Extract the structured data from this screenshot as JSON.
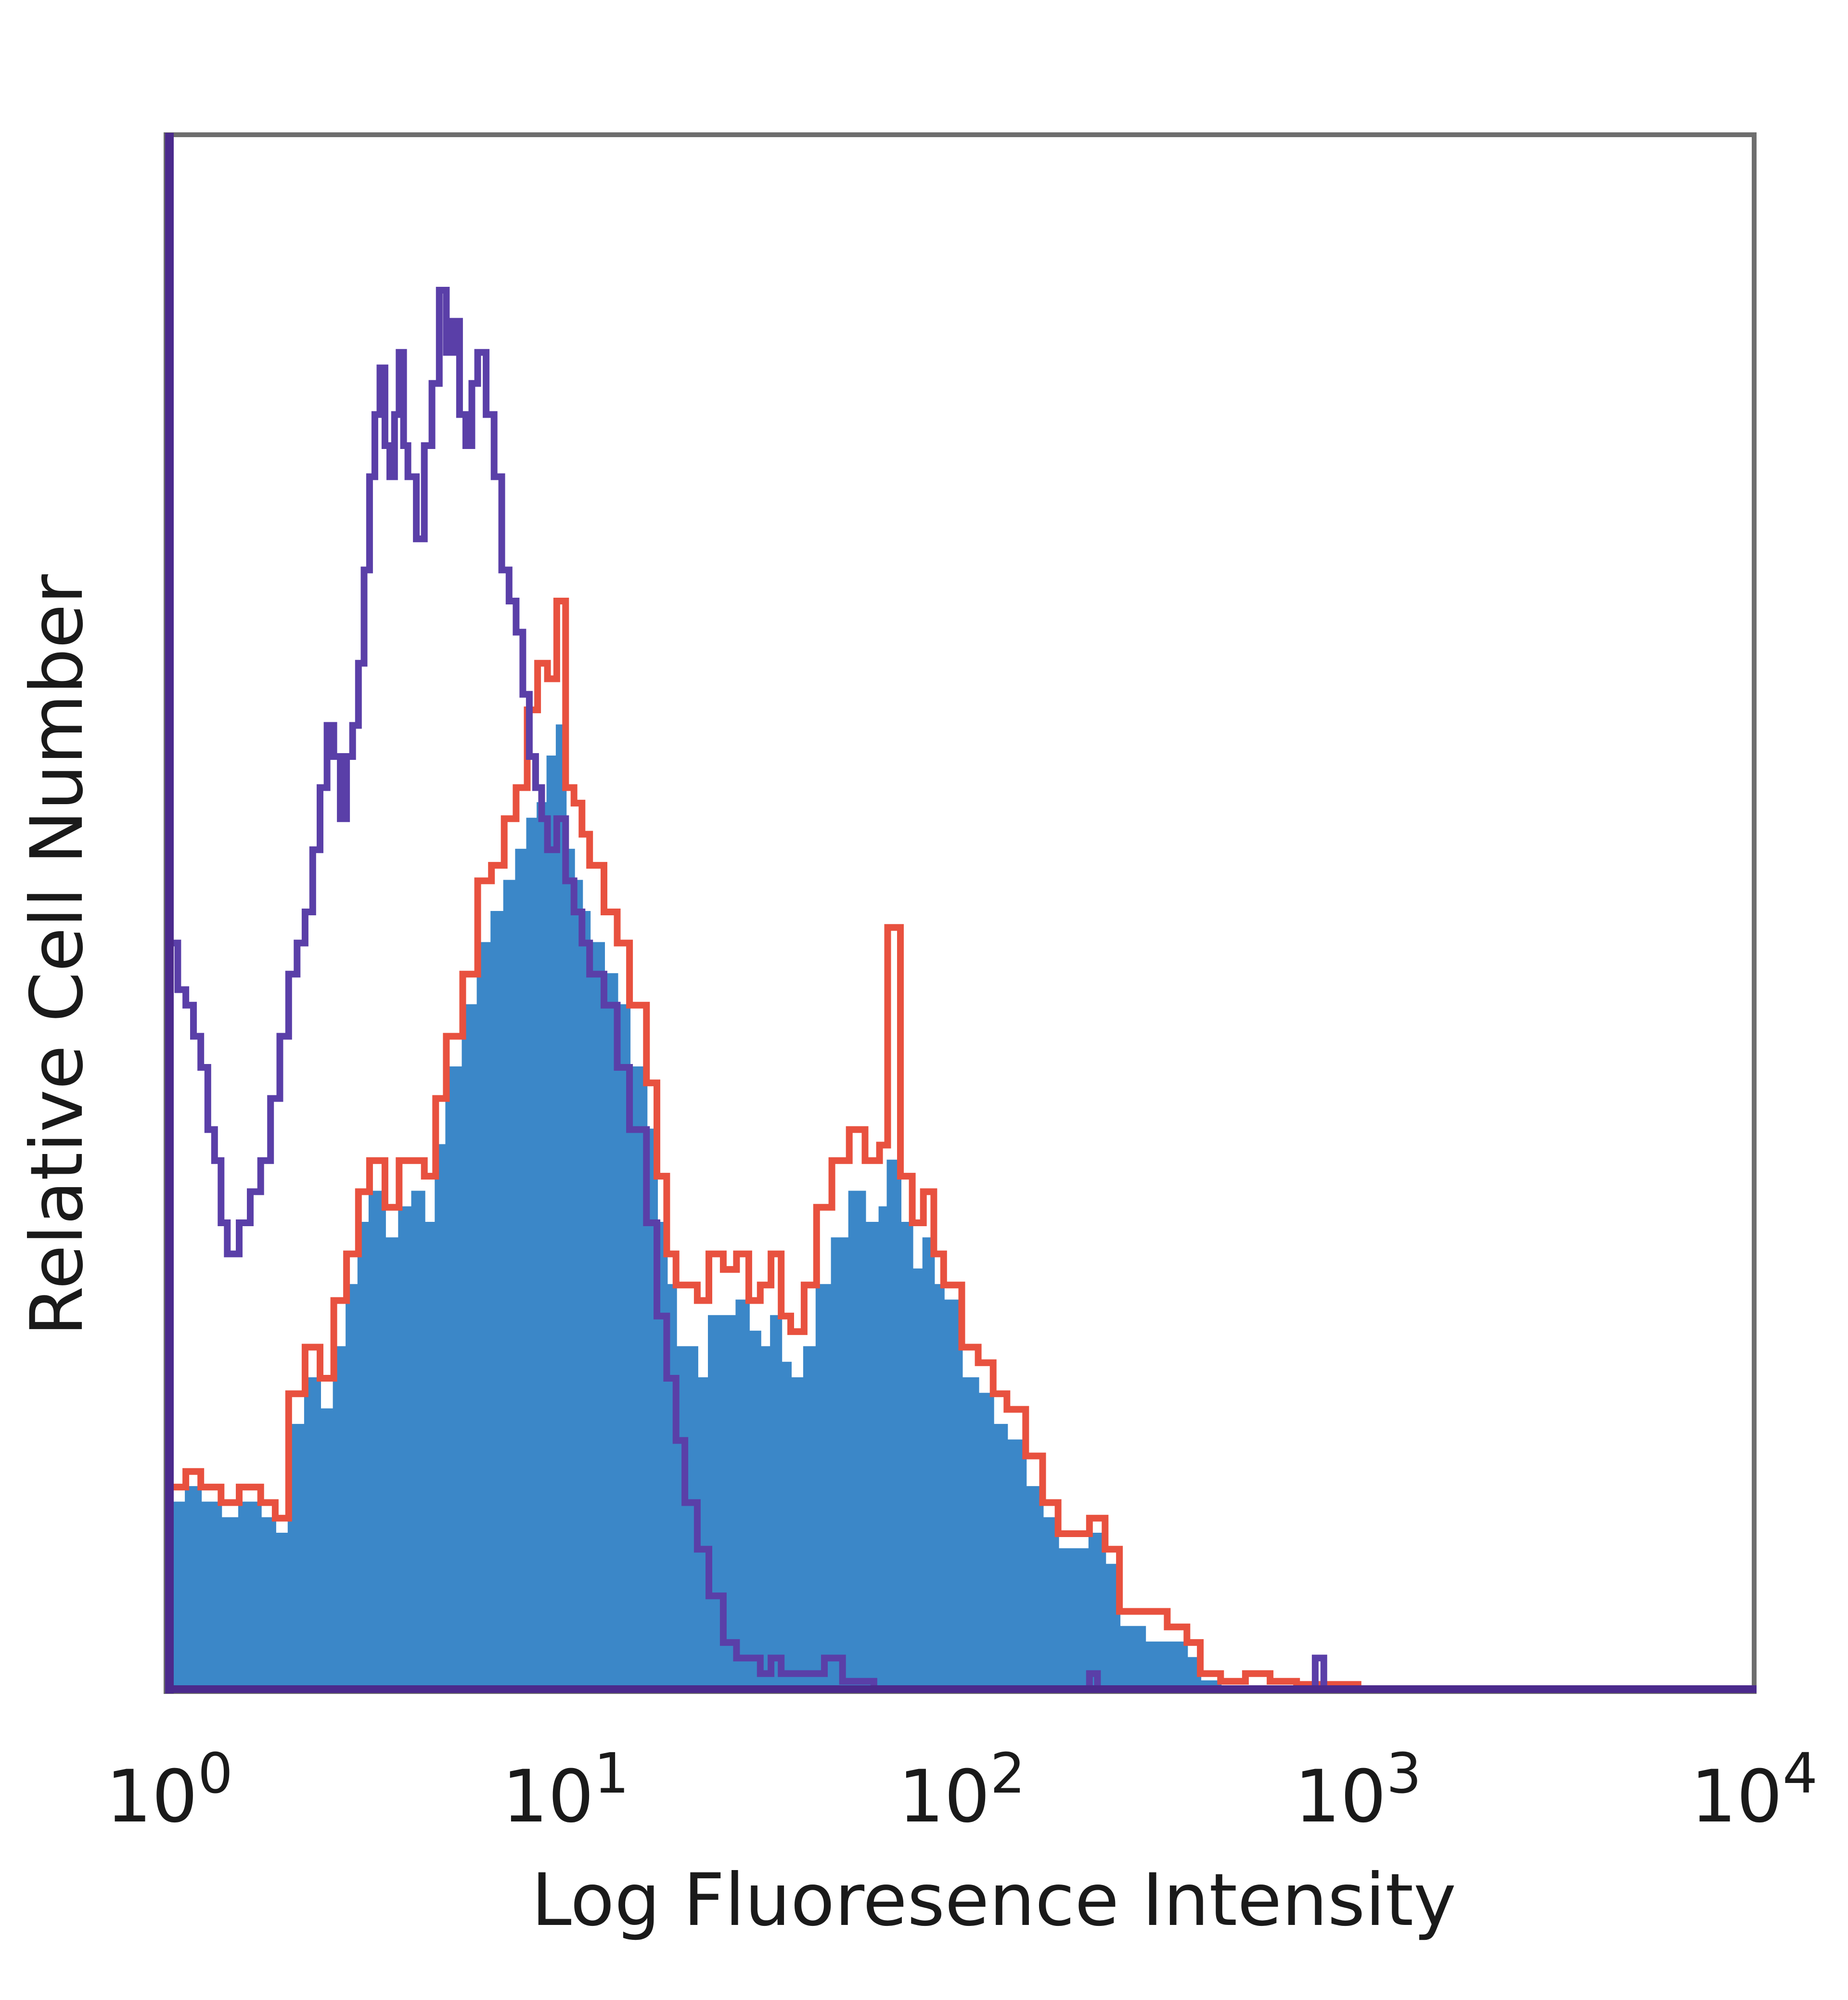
{
  "chart_data": {
    "type": "area",
    "title": "",
    "xlabel": "Log Fluoresence Intensity",
    "ylabel": "Relative Cell Number",
    "x_scale": "log",
    "xlim": [
      1,
      10000
    ],
    "ylim": [
      0,
      100
    ],
    "grid": false,
    "legend": "none",
    "x_ticks": [
      {
        "value": 1,
        "base": "10",
        "exp": "0"
      },
      {
        "value": 10,
        "base": "10",
        "exp": "1"
      },
      {
        "value": 100,
        "base": "10",
        "exp": "2"
      },
      {
        "value": 1000,
        "base": "10",
        "exp": "3"
      },
      {
        "value": 10000,
        "base": "10",
        "exp": "4"
      }
    ],
    "series": [
      {
        "style": "filled",
        "color": "#3b87c8",
        "points": [
          [
            1.0,
            12
          ],
          [
            1.1,
            13
          ],
          [
            1.2,
            12
          ],
          [
            1.35,
            11
          ],
          [
            1.5,
            12
          ],
          [
            1.7,
            11
          ],
          [
            1.85,
            10
          ],
          [
            2.0,
            17
          ],
          [
            2.2,
            20
          ],
          [
            2.4,
            18
          ],
          [
            2.6,
            22
          ],
          [
            2.8,
            26
          ],
          [
            3.0,
            30
          ],
          [
            3.2,
            32
          ],
          [
            3.5,
            29
          ],
          [
            3.8,
            31
          ],
          [
            4.1,
            32
          ],
          [
            4.4,
            30
          ],
          [
            4.7,
            35
          ],
          [
            5.0,
            40
          ],
          [
            5.5,
            44
          ],
          [
            6.0,
            48
          ],
          [
            6.5,
            50
          ],
          [
            7.0,
            52
          ],
          [
            7.5,
            54
          ],
          [
            8.0,
            56
          ],
          [
            8.5,
            57
          ],
          [
            9.0,
            60
          ],
          [
            9.5,
            62
          ],
          [
            10.0,
            54
          ],
          [
            10.5,
            52
          ],
          [
            11.0,
            50
          ],
          [
            11.5,
            48
          ],
          [
            12.5,
            46
          ],
          [
            13.5,
            44
          ],
          [
            14.5,
            40
          ],
          [
            16.0,
            36
          ],
          [
            17.0,
            30
          ],
          [
            18.0,
            26
          ],
          [
            19.0,
            22
          ],
          [
            20.0,
            22
          ],
          [
            21.5,
            20
          ],
          [
            23.0,
            24
          ],
          [
            25.0,
            24
          ],
          [
            27.0,
            25
          ],
          [
            29.0,
            23
          ],
          [
            31.0,
            22
          ],
          [
            33.0,
            24
          ],
          [
            35.0,
            21
          ],
          [
            37.0,
            20
          ],
          [
            40.0,
            22
          ],
          [
            43.0,
            26
          ],
          [
            47.0,
            29
          ],
          [
            52.0,
            32
          ],
          [
            57.0,
            30
          ],
          [
            62.0,
            31
          ],
          [
            65.0,
            34
          ],
          [
            70.0,
            30
          ],
          [
            75.0,
            27
          ],
          [
            80.0,
            29
          ],
          [
            85.0,
            26
          ],
          [
            90.0,
            25
          ],
          [
            100.0,
            20
          ],
          [
            110.0,
            19
          ],
          [
            120.0,
            17
          ],
          [
            130.0,
            16
          ],
          [
            145.0,
            13
          ],
          [
            160.0,
            11
          ],
          [
            175.0,
            9
          ],
          [
            190.0,
            9
          ],
          [
            210.0,
            10
          ],
          [
            230.0,
            8
          ],
          [
            250.0,
            4
          ],
          [
            290.0,
            3
          ],
          [
            330.0,
            3
          ],
          [
            370.0,
            2
          ],
          [
            400.0,
            0.5
          ],
          [
            450.0,
            0
          ],
          [
            1000.0,
            0
          ]
        ]
      },
      {
        "style": "line",
        "color": "#e8513f",
        "points": [
          [
            1.0,
            13
          ],
          [
            1.1,
            14
          ],
          [
            1.2,
            13
          ],
          [
            1.35,
            12
          ],
          [
            1.5,
            13
          ],
          [
            1.7,
            12
          ],
          [
            1.85,
            11
          ],
          [
            2.0,
            19
          ],
          [
            2.2,
            22
          ],
          [
            2.4,
            20
          ],
          [
            2.6,
            25
          ],
          [
            2.8,
            28
          ],
          [
            3.0,
            32
          ],
          [
            3.2,
            34
          ],
          [
            3.5,
            31
          ],
          [
            3.8,
            34
          ],
          [
            4.1,
            34
          ],
          [
            4.4,
            33
          ],
          [
            4.7,
            38
          ],
          [
            5.0,
            42
          ],
          [
            5.5,
            46
          ],
          [
            6.0,
            52
          ],
          [
            6.5,
            53
          ],
          [
            7.0,
            56
          ],
          [
            7.5,
            58
          ],
          [
            8.0,
            63
          ],
          [
            8.5,
            66
          ],
          [
            9.0,
            65
          ],
          [
            9.5,
            70
          ],
          [
            10.0,
            58
          ],
          [
            10.5,
            57
          ],
          [
            11.0,
            55
          ],
          [
            11.5,
            53
          ],
          [
            12.5,
            50
          ],
          [
            13.5,
            48
          ],
          [
            14.5,
            44
          ],
          [
            16.0,
            39
          ],
          [
            17.0,
            33
          ],
          [
            18.0,
            28
          ],
          [
            19.0,
            26
          ],
          [
            20.0,
            26
          ],
          [
            21.5,
            25
          ],
          [
            23.0,
            28
          ],
          [
            25.0,
            27
          ],
          [
            27.0,
            28
          ],
          [
            29.0,
            25
          ],
          [
            31.0,
            26
          ],
          [
            33.0,
            28
          ],
          [
            35.0,
            24
          ],
          [
            37.0,
            23
          ],
          [
            40.0,
            26
          ],
          [
            43.0,
            31
          ],
          [
            47.0,
            34
          ],
          [
            52.0,
            36
          ],
          [
            57.0,
            34
          ],
          [
            62.0,
            35
          ],
          [
            65.0,
            49
          ],
          [
            70.0,
            33
          ],
          [
            75.0,
            30
          ],
          [
            80.0,
            32
          ],
          [
            85.0,
            28
          ],
          [
            90.0,
            26
          ],
          [
            100.0,
            22
          ],
          [
            110.0,
            21
          ],
          [
            120.0,
            19
          ],
          [
            130.0,
            18
          ],
          [
            145.0,
            15
          ],
          [
            160.0,
            12
          ],
          [
            175.0,
            10
          ],
          [
            190.0,
            10
          ],
          [
            210.0,
            11
          ],
          [
            230.0,
            9
          ],
          [
            250.0,
            5
          ],
          [
            290.0,
            5
          ],
          [
            330.0,
            4
          ],
          [
            370.0,
            3
          ],
          [
            400.0,
            1
          ],
          [
            450.0,
            0.5
          ],
          [
            520.0,
            1
          ],
          [
            600.0,
            0.5
          ],
          [
            700.0,
            0.3
          ],
          [
            1000.0,
            0
          ]
        ]
      },
      {
        "style": "line",
        "color": "#5a3fa8",
        "points": [
          [
            1.0,
            48
          ],
          [
            1.05,
            45
          ],
          [
            1.1,
            44
          ],
          [
            1.15,
            42
          ],
          [
            1.2,
            40
          ],
          [
            1.25,
            36
          ],
          [
            1.3,
            34
          ],
          [
            1.35,
            30
          ],
          [
            1.4,
            28
          ],
          [
            1.5,
            30
          ],
          [
            1.6,
            32
          ],
          [
            1.7,
            34
          ],
          [
            1.8,
            38
          ],
          [
            1.9,
            42
          ],
          [
            2.0,
            46
          ],
          [
            2.1,
            48
          ],
          [
            2.2,
            50
          ],
          [
            2.3,
            54
          ],
          [
            2.4,
            58
          ],
          [
            2.5,
            62
          ],
          [
            2.6,
            60
          ],
          [
            2.7,
            56
          ],
          [
            2.8,
            60
          ],
          [
            2.9,
            62
          ],
          [
            3.0,
            66
          ],
          [
            3.1,
            72
          ],
          [
            3.2,
            78
          ],
          [
            3.3,
            82
          ],
          [
            3.4,
            85
          ],
          [
            3.5,
            80
          ],
          [
            3.6,
            78
          ],
          [
            3.7,
            82
          ],
          [
            3.8,
            86
          ],
          [
            3.9,
            80
          ],
          [
            4.0,
            78
          ],
          [
            4.2,
            74
          ],
          [
            4.4,
            80
          ],
          [
            4.6,
            84
          ],
          [
            4.8,
            90
          ],
          [
            5.0,
            86
          ],
          [
            5.2,
            88
          ],
          [
            5.4,
            82
          ],
          [
            5.6,
            80
          ],
          [
            5.8,
            84
          ],
          [
            6.0,
            86
          ],
          [
            6.3,
            82
          ],
          [
            6.6,
            78
          ],
          [
            6.9,
            72
          ],
          [
            7.2,
            70
          ],
          [
            7.5,
            68
          ],
          [
            7.8,
            64
          ],
          [
            8.1,
            60
          ],
          [
            8.4,
            58
          ],
          [
            8.7,
            56
          ],
          [
            9.0,
            54
          ],
          [
            9.5,
            56
          ],
          [
            10.0,
            52
          ],
          [
            10.5,
            50
          ],
          [
            11.0,
            48
          ],
          [
            11.5,
            46
          ],
          [
            12.5,
            44
          ],
          [
            13.5,
            40
          ],
          [
            14.5,
            36
          ],
          [
            16.0,
            30
          ],
          [
            17.0,
            24
          ],
          [
            18.0,
            20
          ],
          [
            19.0,
            16
          ],
          [
            20.0,
            12
          ],
          [
            21.5,
            9
          ],
          [
            23.0,
            6
          ],
          [
            25.0,
            3
          ],
          [
            27.0,
            2
          ],
          [
            29.0,
            2
          ],
          [
            31.0,
            1
          ],
          [
            33.0,
            2
          ],
          [
            35.0,
            1
          ],
          [
            40.0,
            1
          ],
          [
            45.0,
            2
          ],
          [
            50.0,
            0.5
          ],
          [
            60.0,
            0
          ],
          [
            200.0,
            0
          ],
          [
            210.0,
            1
          ],
          [
            220.0,
            0
          ],
          [
            700.0,
            0
          ],
          [
            780.0,
            2
          ],
          [
            820.0,
            0
          ],
          [
            1000.0,
            0
          ]
        ]
      }
    ]
  }
}
